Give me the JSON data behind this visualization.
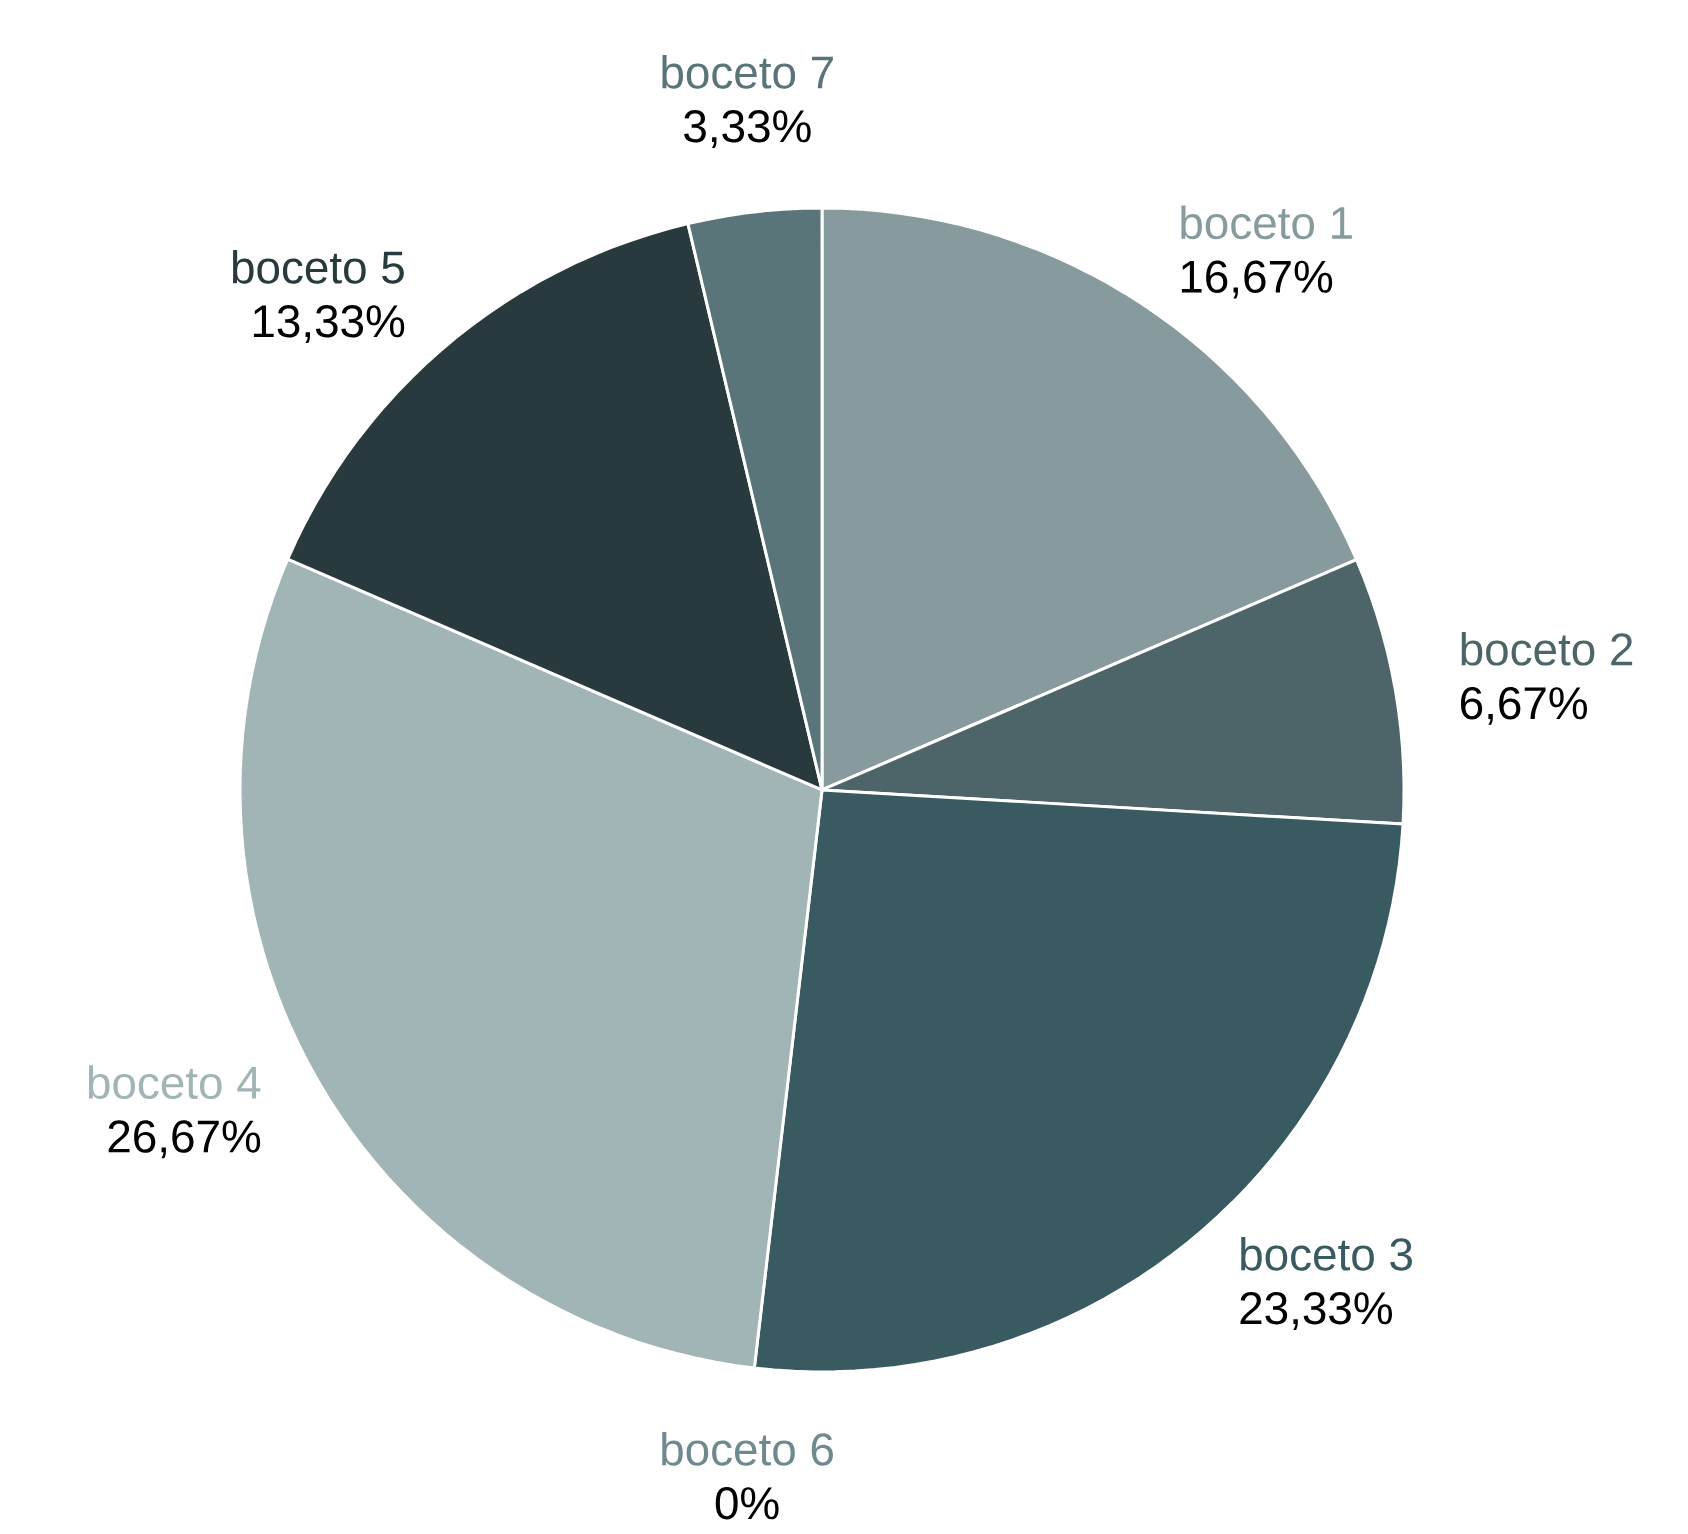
{
  "chart_data": {
    "type": "pie",
    "categories": [
      "boceto 1",
      "boceto 2",
      "boceto 3",
      "boceto 6",
      "boceto 4",
      "boceto 5",
      "boceto 7"
    ],
    "values": [
      16.67,
      6.67,
      23.33,
      0,
      26.67,
      13.33,
      3.33
    ],
    "value_labels": [
      "16,67%",
      "6,67%",
      "23,33%",
      "0%",
      "26,67%",
      "13,33%",
      "3,33%"
    ],
    "colors": [
      "#879b9e",
      "#4d6468",
      "#385a60",
      "#6f8a8e",
      "#a1b4b6",
      "#283a3e",
      "#5a7579"
    ]
  }
}
